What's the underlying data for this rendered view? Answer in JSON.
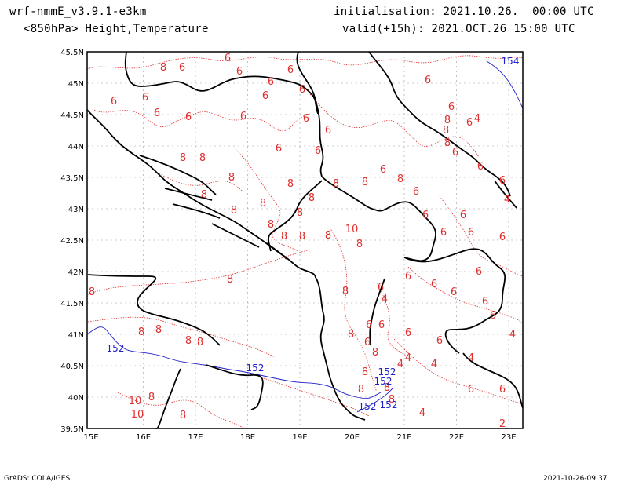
{
  "header": {
    "model": "wrf-nmmE_v3.9.1-e3km",
    "product": "<850hPa> Height,Temperature",
    "init": "initialisation: 2021.10.26.  00:00 UTC",
    "valid": "valid(+15h): 2021.OCT.26 15:00 UTC"
  },
  "axes": {
    "lon_labels": [
      "15E",
      "16E",
      "17E",
      "18E",
      "19E",
      "20E",
      "21E",
      "22E",
      "23E"
    ],
    "lat_labels": [
      "45.5N",
      "45N",
      "44.5N",
      "44N",
      "43.5N",
      "43N",
      "42.5N",
      "42N",
      "41.5N",
      "41N",
      "40.5N",
      "40N",
      "39.5N"
    ]
  },
  "height_labels": [
    "154",
    "152",
    "152",
    "152",
    "152",
    "152",
    "152"
  ],
  "temp_labels": [
    "6",
    "6",
    "6",
    "6",
    "6",
    "6",
    "6",
    "6",
    "6",
    "6",
    "6",
    "6",
    "6",
    "6",
    "6",
    "6",
    "6",
    "6",
    "6",
    "6",
    "6",
    "6",
    "6",
    "6",
    "6",
    "6",
    "6",
    "6",
    "6",
    "6",
    "6",
    "6",
    "6",
    "6",
    "6",
    "6",
    "6",
    "6",
    "6",
    "6",
    "6",
    "6",
    "6",
    "8",
    "8",
    "8",
    "8",
    "8",
    "8",
    "8",
    "8",
    "8",
    "8",
    "8",
    "8",
    "8",
    "8",
    "8",
    "8",
    "8",
    "8",
    "8",
    "8",
    "8",
    "8",
    "8",
    "8",
    "8",
    "8",
    "8",
    "8",
    "8",
    "8",
    "8",
    "8",
    "8",
    "8",
    "8",
    "8",
    "10",
    "10",
    "10",
    "4",
    "4",
    "4",
    "4",
    "4",
    "4",
    "4",
    "4",
    "4",
    "2",
    "2"
  ],
  "colors": {
    "temperature": "#e03030",
    "height": "#2020cc",
    "border": "#000000",
    "grid": "#888888"
  },
  "footer": {
    "left": "GrADS: COLA/IGES",
    "right": "2021-10-26-09:37"
  }
}
